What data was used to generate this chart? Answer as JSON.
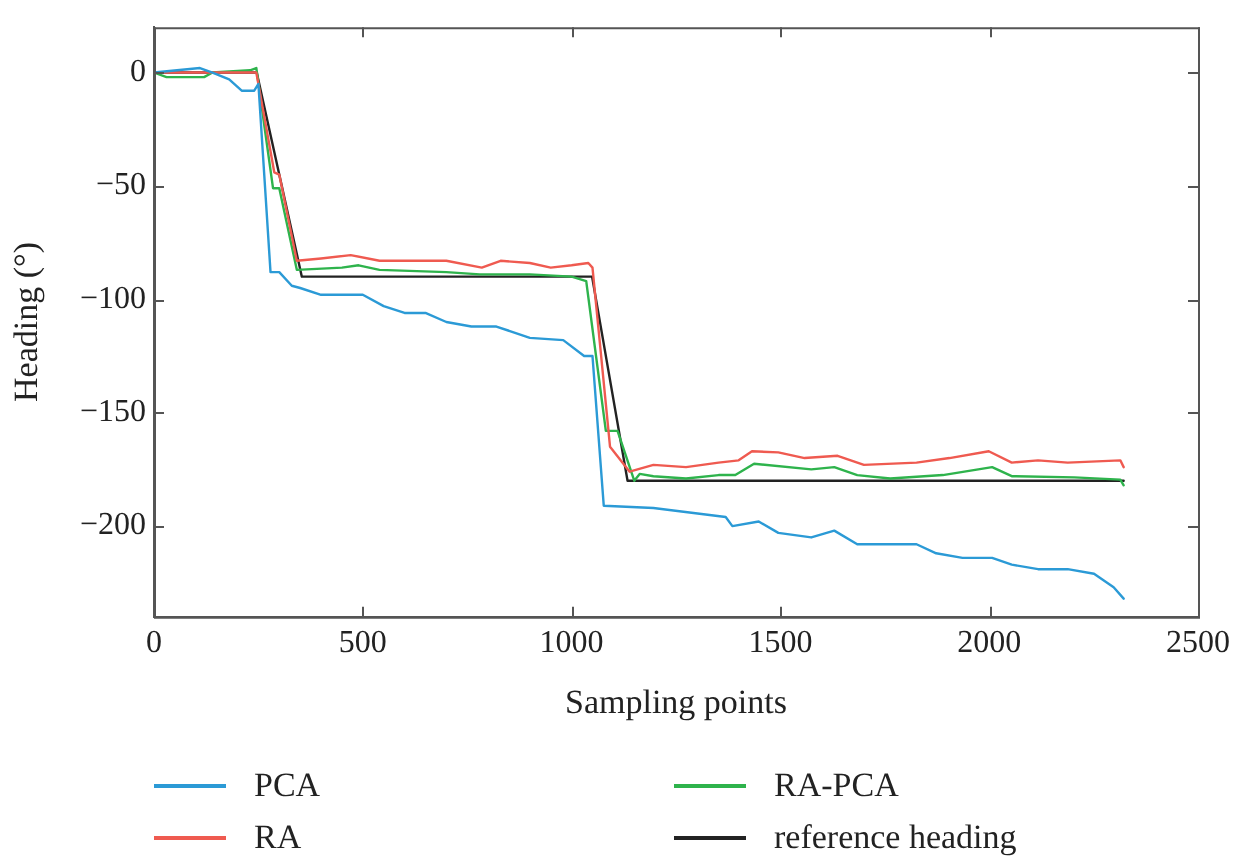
{
  "chart_data": {
    "type": "line",
    "xlabel": "Sampling points",
    "ylabel": "Heading (°)",
    "xlim": [
      0,
      2500
    ],
    "xticks": [
      0,
      500,
      1000,
      1500,
      2000,
      2500
    ],
    "ylim": [
      -240,
      20
    ],
    "yticks": [
      -200,
      -150,
      -100,
      -50,
      0
    ],
    "grid": false,
    "legend": "bottom",
    "marker": "none",
    "line_style": "solid",
    "series": [
      {
        "name": "PCA",
        "color": "#2b9ad6",
        "x": [
          0,
          110,
          140,
          180,
          210,
          240,
          250,
          279,
          300,
          330,
          350,
          400,
          500,
          550,
          600,
          650,
          700,
          760,
          820,
          900,
          980,
          1030,
          1050,
          1077,
          1196,
          1369,
          1385,
          1448,
          1495,
          1574,
          1629,
          1684,
          1826,
          1873,
          1936,
          2007,
          2054,
          2117,
          2188,
          2251,
          2298,
          2322
        ],
        "values": [
          0,
          2,
          0,
          -3,
          -8,
          -8,
          -5,
          -88,
          -88,
          -94,
          -95,
          -98,
          -98,
          -103,
          -106,
          -106,
          -110,
          -112,
          -112,
          -117,
          -118,
          -125,
          -125,
          -191,
          -192,
          -196,
          -200,
          -198,
          -203,
          -205,
          -202,
          -208,
          -208,
          -212,
          -214,
          -214,
          -217,
          -219,
          -219,
          -221,
          -227,
          -232
        ]
      },
      {
        "name": "RA",
        "color": "#ef5a50",
        "x": [
          0,
          120,
          245,
          288,
          300,
          342,
          400,
          471,
          540,
          700,
          785,
          830,
          900,
          950,
          1000,
          1040,
          1050,
          1092,
          1139,
          1196,
          1274,
          1352,
          1400,
          1432,
          1495,
          1558,
          1637,
          1700,
          1826,
          1905,
          1999,
          2054,
          2117,
          2188,
          2314,
          2322
        ],
        "values": [
          0,
          0,
          0,
          -44,
          -45,
          -83,
          -82,
          -80.5,
          -83,
          -83,
          -86,
          -83,
          -84,
          -86,
          -85,
          -84,
          -86,
          -165,
          -176,
          -173,
          -174,
          -172,
          -171,
          -167,
          -167.5,
          -170,
          -169,
          -173,
          -172,
          -170,
          -167,
          -172,
          -171,
          -172,
          -171,
          -174
        ]
      },
      {
        "name": "RA-PCA",
        "color": "#2eb34c",
        "x": [
          0,
          30,
          120,
          140,
          230,
          245,
          285,
          300,
          342,
          450,
          490,
          540,
          700,
          780,
          900,
          1000,
          1035,
          1082,
          1110,
          1150,
          1163,
          1196,
          1274,
          1352,
          1392,
          1437,
          1574,
          1629,
          1684,
          1763,
          1889,
          2007,
          2054,
          2204,
          2314,
          2322
        ],
        "values": [
          0,
          -2,
          -2,
          0,
          1,
          2,
          -51,
          -51,
          -87,
          -86,
          -85,
          -87,
          -88,
          -89,
          -89,
          -90,
          -92,
          -158,
          -158,
          -180,
          -177,
          -178,
          -179,
          -177.5,
          -177.5,
          -172.5,
          -175,
          -174,
          -177.5,
          -179,
          -177.5,
          -174,
          -178,
          -178.5,
          -179.5,
          -182
        ]
      },
      {
        "name": "reference heading",
        "color": "#222222",
        "x": [
          0,
          246,
          354,
          1049,
          1134,
          2322
        ],
        "values": [
          0,
          0,
          -90,
          -90,
          -180,
          -180
        ]
      }
    ]
  }
}
